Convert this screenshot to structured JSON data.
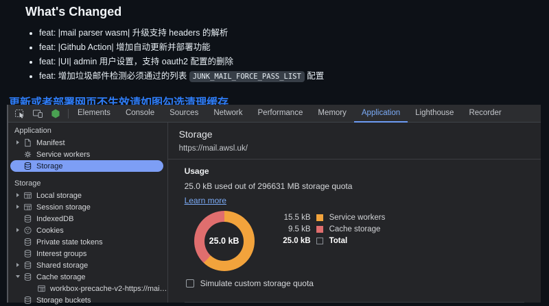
{
  "changelog": {
    "title": "What's Changed",
    "bullets": [
      [
        {
          "t": "text",
          "v": "feat: |mail parser wasm| 升级支持 headers 的解析"
        }
      ],
      [
        {
          "t": "text",
          "v": "feat: |Github Action| 增加自动更新并部署功能"
        }
      ],
      [
        {
          "t": "text",
          "v": "feat: |UI| admin 用户设置，支持 oauth2 配置的删除"
        }
      ],
      [
        {
          "t": "text",
          "v": "feat: 增加垃圾邮件检测必须通过的列表 "
        },
        {
          "t": "code",
          "v": "JUNK_MAIL_FORCE_PASS_LIST"
        },
        {
          "t": "text",
          "v": " 配置"
        }
      ]
    ],
    "notice": "更新或者部署网页不生效请如图勾选清理缓存"
  },
  "devtools": {
    "toolbar_icons": [
      {
        "name": "inspect-element-icon"
      },
      {
        "name": "device-toolbar-icon"
      },
      {
        "name": "extension-icon"
      }
    ],
    "tabs": [
      {
        "label": "Elements",
        "active": false
      },
      {
        "label": "Console",
        "active": false
      },
      {
        "label": "Sources",
        "active": false
      },
      {
        "label": "Network",
        "active": false
      },
      {
        "label": "Performance",
        "active": false
      },
      {
        "label": "Memory",
        "active": false
      },
      {
        "label": "Application",
        "active": true
      },
      {
        "label": "Lighthouse",
        "active": false
      },
      {
        "label": "Recorder",
        "active": false
      }
    ],
    "sidebar": {
      "rows": [
        {
          "kind": "header",
          "label": "Application"
        },
        {
          "kind": "item",
          "label": "Manifest",
          "icon": "file-icon",
          "arrow": "right",
          "selected": false,
          "indent": false
        },
        {
          "kind": "item",
          "label": "Service workers",
          "icon": "gear-icon",
          "arrow": "none",
          "selected": false,
          "indent": false
        },
        {
          "kind": "item",
          "label": "Storage",
          "icon": "database-icon",
          "arrow": "none",
          "selected": true,
          "indent": false
        },
        {
          "kind": "header",
          "label": "Storage",
          "gap": true
        },
        {
          "kind": "item",
          "label": "Local storage",
          "icon": "table-icon",
          "arrow": "right",
          "selected": false,
          "indent": false
        },
        {
          "kind": "item",
          "label": "Session storage",
          "icon": "table-icon",
          "arrow": "right",
          "selected": false,
          "indent": false
        },
        {
          "kind": "item",
          "label": "IndexedDB",
          "icon": "database-icon",
          "arrow": "none",
          "selected": false,
          "indent": false
        },
        {
          "kind": "item",
          "label": "Cookies",
          "icon": "cookie-icon",
          "arrow": "right",
          "selected": false,
          "indent": false
        },
        {
          "kind": "item",
          "label": "Private state tokens",
          "icon": "database-icon",
          "arrow": "none",
          "selected": false,
          "indent": false
        },
        {
          "kind": "item",
          "label": "Interest groups",
          "icon": "database-icon",
          "arrow": "none",
          "selected": false,
          "indent": false
        },
        {
          "kind": "item",
          "label": "Shared storage",
          "icon": "database-icon",
          "arrow": "right",
          "selected": false,
          "indent": false
        },
        {
          "kind": "item",
          "label": "Cache storage",
          "icon": "database-icon",
          "arrow": "down",
          "selected": false,
          "indent": false
        },
        {
          "kind": "item",
          "label": "workbox-precache-v2-https://mai…",
          "icon": "table-icon",
          "arrow": "none",
          "selected": false,
          "indent": true
        },
        {
          "kind": "item",
          "label": "Storage buckets",
          "icon": "database-icon",
          "arrow": "none",
          "selected": false,
          "indent": false
        }
      ]
    },
    "main": {
      "title": "Storage",
      "origin": "https://mail.awsl.uk/",
      "usage_heading": "Usage",
      "usage_text": "25.0 kB used out of 296631 MB storage quota",
      "learn_more_label": "Learn more",
      "donut": {
        "center_label": "25.0 kB",
        "segments": [
          {
            "label": "Service workers",
            "value_kb": 15.5,
            "color": "#F2A33C"
          },
          {
            "label": "Cache storage",
            "value_kb": 9.5,
            "color": "#E06E6E"
          }
        ],
        "total_kb": 25.0
      },
      "legend": [
        {
          "value": "15.5 kB",
          "label": "Service workers",
          "color": "#F2A33C",
          "bold": false
        },
        {
          "value": "9.5 kB",
          "label": "Cache storage",
          "color": "#E06E6E",
          "bold": false
        },
        {
          "value": "25.0 kB",
          "label": "Total",
          "color": null,
          "bold": true
        }
      ],
      "simulate_label": "Simulate custom storage quota",
      "simulate_checked": false
    }
  },
  "colors": {
    "page_bg": "#0d1117",
    "notice_blue": "#2e7cf6",
    "devtools_bg": "#242528",
    "accent_blue": "#7cacf8",
    "selection_pill": "#7d9ef5",
    "donut_orange": "#F2A33C",
    "donut_red": "#E06E6E"
  }
}
